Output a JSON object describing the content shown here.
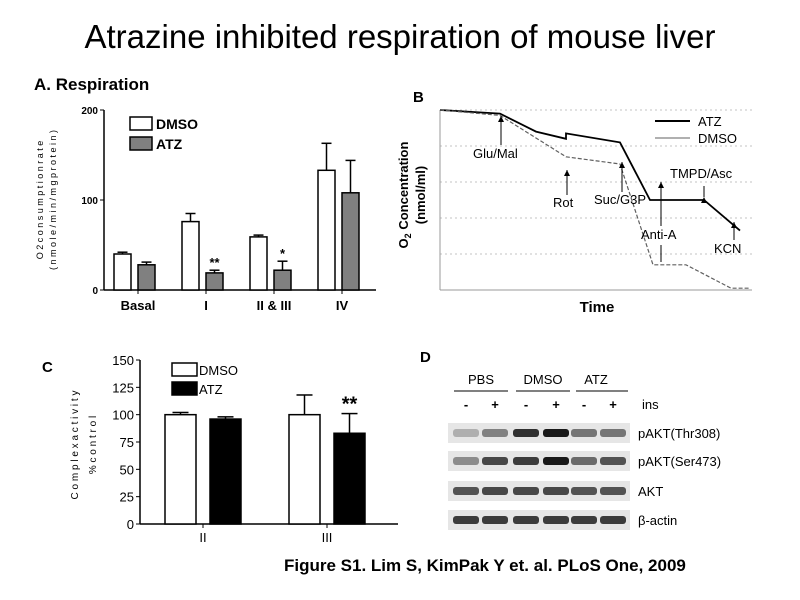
{
  "page_title": "Atrazine inhibited respiration of mouse liver",
  "caption": "Figure S1. Lim S, KimPak Y et. al. PLoS One, 2009",
  "chart_data": [
    {
      "panel": "A. Respiration",
      "type": "bar",
      "ylabel": "O2 consumption rate (nmole/min/mg protein)",
      "ylabel_line1": "O 2 c o n s u m p t i o n r a t e",
      "ylabel_line2": "( n m o l e / m i n / m g p r o t e i n )",
      "ylim": [
        0,
        200
      ],
      "yticks": [
        0,
        100,
        200
      ],
      "categories": [
        "Basal",
        "I",
        "II & III",
        "IV"
      ],
      "series": [
        {
          "name": "DMSO",
          "color": "#ffffff",
          "values": [
            40,
            76,
            59,
            133
          ],
          "errors": [
            2,
            9,
            2,
            30
          ]
        },
        {
          "name": "ATZ",
          "color": "#808080",
          "values": [
            28,
            19,
            22,
            108
          ],
          "errors": [
            3,
            3,
            10,
            36
          ]
        }
      ],
      "annotations": [
        {
          "category": "I",
          "series": "ATZ",
          "text": "**"
        },
        {
          "category": "II & III",
          "series": "ATZ",
          "text": "*"
        }
      ]
    },
    {
      "panel": "B",
      "type": "line",
      "xlabel": "Time",
      "ylabel_line1": "O2 Concentration",
      "ylabel_sub": "2",
      "ylabel_line2": "(nmol/ml)",
      "series": [
        {
          "name": "ATZ",
          "color": "#000000",
          "points": [
            [
              0,
              100
            ],
            [
              20,
              98
            ],
            [
              32,
              88
            ],
            [
              42,
              84
            ],
            [
              42,
              87
            ],
            [
              60,
              82
            ],
            [
              70,
              50
            ],
            [
              88,
              50
            ],
            [
              100,
              33
            ]
          ]
        },
        {
          "name": "DMSO",
          "color": "#606060",
          "points": [
            [
              0,
              100
            ],
            [
              20,
              97
            ],
            [
              42,
              74
            ],
            [
              60,
              70
            ],
            [
              71,
              14
            ],
            [
              82,
              14
            ],
            [
              97,
              1
            ],
            [
              103,
              1
            ]
          ]
        }
      ],
      "annotations": [
        "Glu/Mal",
        "Rot",
        "Suc/G3P",
        "Anti-A",
        "TMPD/Asc",
        "KCN"
      ]
    },
    {
      "panel": "C",
      "type": "bar",
      "ylabel_line1": "C o m p l e x   a c t i v i t y",
      "ylabel_line2": "% c o n t r o l",
      "ylim": [
        0,
        150
      ],
      "yticks": [
        0,
        25,
        50,
        75,
        100,
        125,
        150
      ],
      "categories": [
        "II",
        "III"
      ],
      "series": [
        {
          "name": "DMSO",
          "color": "#ffffff",
          "values": [
            100,
            100
          ],
          "errors": [
            2,
            18
          ]
        },
        {
          "name": "ATZ",
          "color": "#000000",
          "values": [
            96,
            83
          ],
          "errors": [
            2,
            18
          ]
        }
      ],
      "annotations": [
        {
          "category": "III",
          "series": "ATZ",
          "text": "**"
        }
      ]
    },
    {
      "panel": "D",
      "type": "table",
      "groups": [
        "PBS",
        "DMSO",
        "ATZ"
      ],
      "lane_signs": [
        "-",
        "+",
        "-",
        "+",
        "-",
        "+"
      ],
      "lane_label": "ins",
      "rows": [
        "pAKT(Thr308)",
        "pAKT(Ser473)",
        "AKT",
        "β-actin"
      ],
      "band_intensity": [
        [
          0.35,
          0.55,
          0.9,
          1.0,
          0.6,
          0.6
        ],
        [
          0.5,
          0.8,
          0.85,
          1.0,
          0.65,
          0.75
        ],
        [
          0.75,
          0.8,
          0.8,
          0.8,
          0.75,
          0.75
        ],
        [
          0.85,
          0.85,
          0.85,
          0.85,
          0.85,
          0.85
        ]
      ]
    }
  ]
}
